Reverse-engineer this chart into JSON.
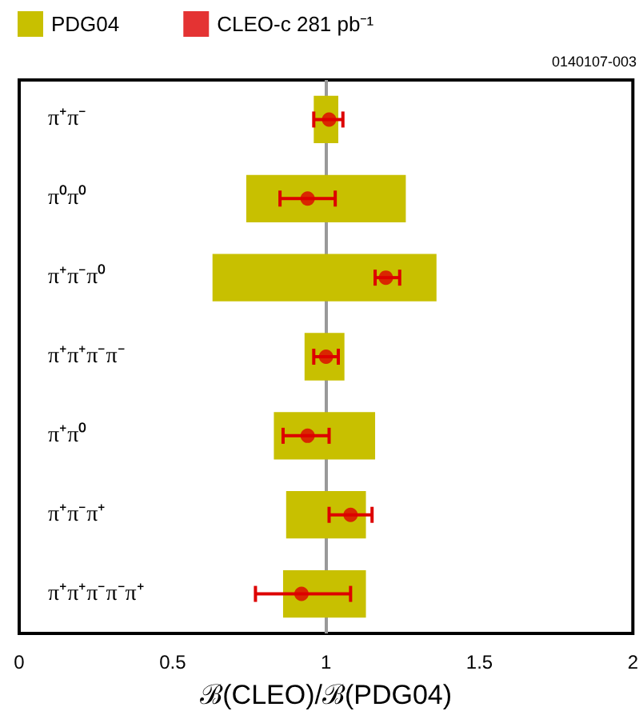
{
  "chart_data": {
    "type": "bar",
    "orientation": "horizontal",
    "xlabel": "ℬ(CLEO)/ℬ(PDG04)",
    "categories": [
      "π⁺π⁻",
      "π⁰π⁰",
      "π⁺π⁻π⁰",
      "π⁺π⁺π⁻π⁻",
      "π⁺π⁰",
      "π⁺π⁻π⁺",
      "π⁺π⁺π⁻π⁻π⁺"
    ],
    "series": [
      {
        "name": "PDG04",
        "color": "#c8c000",
        "base": [
          0.96,
          0.74,
          0.63,
          0.93,
          0.83,
          0.87,
          0.86
        ],
        "values": [
          0.08,
          0.52,
          0.73,
          0.13,
          0.33,
          0.26,
          0.27
        ]
      },
      {
        "name": "CLEO-c 281 pb⁻¹",
        "type": "scatter",
        "color": "#dd0000",
        "values": [
          1.01,
          0.94,
          1.195,
          1.0,
          0.94,
          1.08,
          0.92
        ],
        "errors": [
          [
            0.96,
            1.055
          ],
          [
            0.85,
            1.03
          ],
          [
            1.16,
            1.24
          ],
          [
            0.96,
            1.04
          ],
          [
            0.86,
            1.01
          ],
          [
            1.01,
            1.15
          ],
          [
            0.77,
            1.08
          ]
        ]
      }
    ],
    "xlim": [
      0,
      2
    ],
    "xticks": [
      0,
      0.5,
      1,
      1.5,
      2
    ],
    "ref_lines": [
      {
        "axis": "x",
        "value": 1,
        "color": "#999999"
      }
    ],
    "annotations": [
      "0140107-003"
    ],
    "legend": "top left",
    "grid": false,
    "marker": "circle"
  }
}
